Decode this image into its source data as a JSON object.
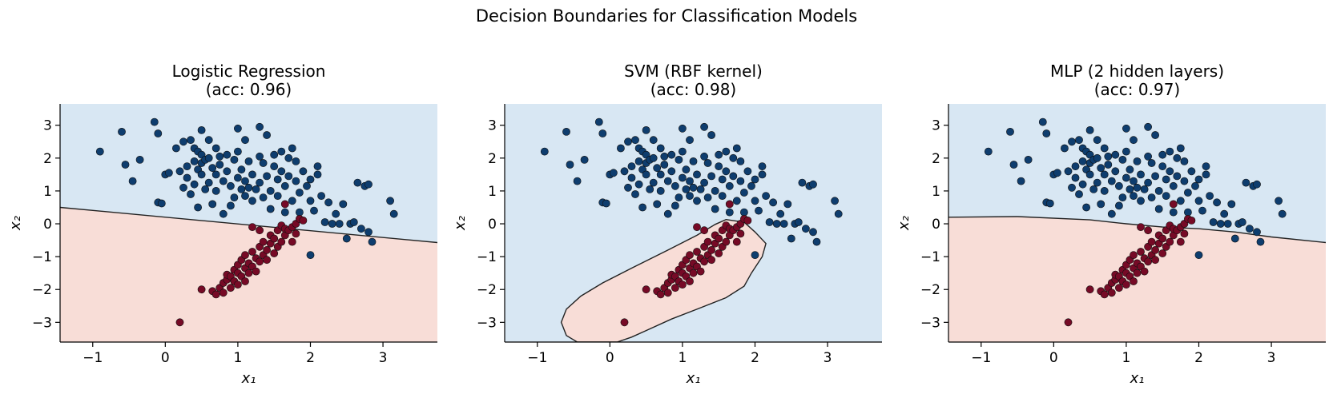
{
  "chart_data": {
    "title": "Decision Boundaries for Classification Models",
    "type": "scatter",
    "colors": {
      "class_0_region": "#d8e7f3",
      "class_1_region": "#f8ddd7",
      "class_0_point": "#0e3d6e",
      "class_1_point": "#760a26",
      "boundary": "#222222"
    },
    "xlim": [
      -1.45,
      3.75
    ],
    "ylim": [
      -3.6,
      3.65
    ],
    "xticks": [
      -1,
      0,
      1,
      2,
      3
    ],
    "yticks": [
      -3,
      -2,
      -1,
      0,
      1,
      2,
      3
    ],
    "xlabel": "x₁",
    "ylabel": "x₂",
    "grid": false,
    "panels": [
      {
        "title_line1": "Logistic Regression",
        "title_line2": "(acc: 0.96)",
        "boundary_type": "line",
        "boundary": [
          [
            -1.45,
            0.5
          ],
          [
            3.75,
            -0.57
          ]
        ]
      },
      {
        "title_line1": "SVM (RBF kernel)",
        "title_line2": "(acc: 0.98)",
        "boundary_type": "closed",
        "boundary": [
          [
            1.6,
            0.13
          ],
          [
            1.85,
            0.05
          ],
          [
            2.0,
            -0.25
          ],
          [
            2.15,
            -0.6
          ],
          [
            2.1,
            -1.0
          ],
          [
            1.95,
            -1.5
          ],
          [
            1.85,
            -1.9
          ],
          [
            1.6,
            -2.25
          ],
          [
            1.2,
            -2.6
          ],
          [
            0.85,
            -2.9
          ],
          [
            0.5,
            -3.25
          ],
          [
            0.3,
            -3.45
          ],
          [
            0.1,
            -3.6
          ],
          [
            -0.45,
            -3.6
          ],
          [
            -0.6,
            -3.4
          ],
          [
            -0.67,
            -3.0
          ],
          [
            -0.6,
            -2.6
          ],
          [
            -0.4,
            -2.2
          ],
          [
            -0.1,
            -1.8
          ],
          [
            0.3,
            -1.35
          ],
          [
            0.8,
            -0.8
          ],
          [
            1.2,
            -0.35
          ],
          [
            1.45,
            -0.02
          ]
        ]
      },
      {
        "title_line1": "MLP (2 hidden layers)",
        "title_line2": "(acc: 0.97)",
        "boundary_type": "curve",
        "boundary": [
          [
            -1.45,
            0.2
          ],
          [
            -0.5,
            0.22
          ],
          [
            0.5,
            0.12
          ],
          [
            1.0,
            0.0
          ],
          [
            1.5,
            -0.1
          ],
          [
            2.0,
            -0.15
          ],
          [
            2.5,
            -0.25
          ],
          [
            3.0,
            -0.4
          ],
          [
            3.75,
            -0.57
          ]
        ]
      }
    ],
    "series": [
      {
        "class": 0,
        "points": [
          [
            -0.9,
            2.2
          ],
          [
            -0.6,
            2.8
          ],
          [
            -0.55,
            1.8
          ],
          [
            -0.45,
            1.3
          ],
          [
            -0.35,
            1.95
          ],
          [
            -0.15,
            3.1
          ],
          [
            -0.1,
            0.65
          ],
          [
            -0.05,
            0.62
          ],
          [
            -0.1,
            2.75
          ],
          [
            0.0,
            1.5
          ],
          [
            0.05,
            1.55
          ],
          [
            0.15,
            2.3
          ],
          [
            0.2,
            1.6
          ],
          [
            0.25,
            1.1
          ],
          [
            0.25,
            2.5
          ],
          [
            0.3,
            1.75
          ],
          [
            0.35,
            2.55
          ],
          [
            0.3,
            1.4
          ],
          [
            0.35,
            0.9
          ],
          [
            0.4,
            1.9
          ],
          [
            0.4,
            2.3
          ],
          [
            0.4,
            1.2
          ],
          [
            0.45,
            1.65
          ],
          [
            0.45,
            2.2
          ],
          [
            0.45,
            0.5
          ],
          [
            0.5,
            2.1
          ],
          [
            0.5,
            1.85
          ],
          [
            0.5,
            2.85
          ],
          [
            0.5,
            1.5
          ],
          [
            0.55,
            1.95
          ],
          [
            0.55,
            1.05
          ],
          [
            0.6,
            2.55
          ],
          [
            0.6,
            2.0
          ],
          [
            0.6,
            1.25
          ],
          [
            0.65,
            1.7
          ],
          [
            0.65,
            0.6
          ],
          [
            0.7,
            2.3
          ],
          [
            0.7,
            1.5
          ],
          [
            0.7,
            1.0
          ],
          [
            0.75,
            2.05
          ],
          [
            0.75,
            1.8
          ],
          [
            0.8,
            1.3
          ],
          [
            0.8,
            0.3
          ],
          [
            0.85,
            1.6
          ],
          [
            0.85,
            2.1
          ],
          [
            0.9,
            0.55
          ],
          [
            0.9,
            1.15
          ],
          [
            0.95,
            1.95
          ],
          [
            0.95,
            0.8
          ],
          [
            1.0,
            2.9
          ],
          [
            1.0,
            1.4
          ],
          [
            1.0,
            2.2
          ],
          [
            1.05,
            1.05
          ],
          [
            1.05,
            1.65
          ],
          [
            1.1,
            2.55
          ],
          [
            1.1,
            0.85
          ],
          [
            1.1,
            1.3
          ],
          [
            1.15,
            1.9
          ],
          [
            1.15,
            1.1
          ],
          [
            1.2,
            1.5
          ],
          [
            1.2,
            0.7
          ],
          [
            1.25,
            1.05
          ],
          [
            1.3,
            2.95
          ],
          [
            1.3,
            2.05
          ],
          [
            1.3,
            1.25
          ],
          [
            1.35,
            0.8
          ],
          [
            1.35,
            1.85
          ],
          [
            1.4,
            2.7
          ],
          [
            1.4,
            1.45
          ],
          [
            1.45,
            1.0
          ],
          [
            1.45,
            0.45
          ],
          [
            1.5,
            2.1
          ],
          [
            1.5,
            1.75
          ],
          [
            1.55,
            0.85
          ],
          [
            1.55,
            1.35
          ],
          [
            1.6,
            2.2
          ],
          [
            1.6,
            1.6
          ],
          [
            1.65,
            0.35
          ],
          [
            1.65,
            1.15
          ],
          [
            1.7,
            2.0
          ],
          [
            1.7,
            1.45
          ],
          [
            1.75,
            0.7
          ],
          [
            1.75,
            2.3
          ],
          [
            1.8,
            1.3
          ],
          [
            1.8,
            1.9
          ],
          [
            1.85,
            0.95
          ],
          [
            1.85,
            0.35
          ],
          [
            1.9,
            1.6
          ],
          [
            1.95,
            1.15
          ],
          [
            2.0,
            0.7
          ],
          [
            2.0,
            1.35
          ],
          [
            2.05,
            0.4
          ],
          [
            2.1,
            1.75
          ],
          [
            2.1,
            1.5
          ],
          [
            2.15,
            0.85
          ],
          [
            2.2,
            0.05
          ],
          [
            2.25,
            0.65
          ],
          [
            2.3,
            0.0
          ],
          [
            2.35,
            0.3
          ],
          [
            2.4,
            0.0
          ],
          [
            2.45,
            0.6
          ],
          [
            2.5,
            -0.45
          ],
          [
            2.55,
            0.0
          ],
          [
            2.6,
            0.05
          ],
          [
            2.65,
            1.25
          ],
          [
            2.7,
            -0.15
          ],
          [
            2.75,
            1.15
          ],
          [
            2.8,
            -0.25
          ],
          [
            2.8,
            1.2
          ],
          [
            2.85,
            -0.55
          ],
          [
            3.1,
            0.7
          ],
          [
            3.15,
            0.3
          ],
          [
            2.0,
            -0.95
          ]
        ]
      },
      {
        "class": 1,
        "points": [
          [
            0.2,
            -3.0
          ],
          [
            0.5,
            -2.0
          ],
          [
            0.65,
            -2.05
          ],
          [
            0.7,
            -2.15
          ],
          [
            0.75,
            -1.95
          ],
          [
            0.8,
            -1.8
          ],
          [
            0.8,
            -2.1
          ],
          [
            0.85,
            -1.7
          ],
          [
            0.85,
            -1.55
          ],
          [
            0.9,
            -1.95
          ],
          [
            0.9,
            -1.6
          ],
          [
            0.95,
            -1.4
          ],
          [
            0.95,
            -1.75
          ],
          [
            1.0,
            -1.5
          ],
          [
            1.0,
            -1.85
          ],
          [
            1.0,
            -1.25
          ],
          [
            1.05,
            -1.6
          ],
          [
            1.05,
            -1.1
          ],
          [
            1.1,
            -1.35
          ],
          [
            1.1,
            -1.75
          ],
          [
            1.1,
            -0.95
          ],
          [
            1.15,
            -1.5
          ],
          [
            1.15,
            -1.2
          ],
          [
            1.2,
            -1.3
          ],
          [
            1.2,
            -0.85
          ],
          [
            1.25,
            -1.05
          ],
          [
            1.25,
            -1.45
          ],
          [
            1.3,
            -0.7
          ],
          [
            1.3,
            -1.15
          ],
          [
            1.35,
            -0.95
          ],
          [
            1.35,
            -0.55
          ],
          [
            1.4,
            -0.8
          ],
          [
            1.4,
            -1.1
          ],
          [
            1.45,
            -0.6
          ],
          [
            1.45,
            -0.35
          ],
          [
            1.5,
            -0.9
          ],
          [
            1.5,
            -0.45
          ],
          [
            1.55,
            -0.2
          ],
          [
            1.55,
            -0.7
          ],
          [
            1.6,
            -0.55
          ],
          [
            1.6,
            -0.05
          ],
          [
            1.65,
            -0.35
          ],
          [
            1.65,
            -0.15
          ],
          [
            1.7,
            -0.2
          ],
          [
            1.75,
            -0.55
          ],
          [
            1.75,
            -0.1
          ],
          [
            1.8,
            0.0
          ],
          [
            1.8,
            -0.3
          ],
          [
            1.85,
            0.15
          ],
          [
            1.9,
            0.1
          ],
          [
            1.65,
            0.6
          ],
          [
            1.3,
            -0.2
          ],
          [
            1.2,
            -0.1
          ]
        ]
      }
    ]
  }
}
